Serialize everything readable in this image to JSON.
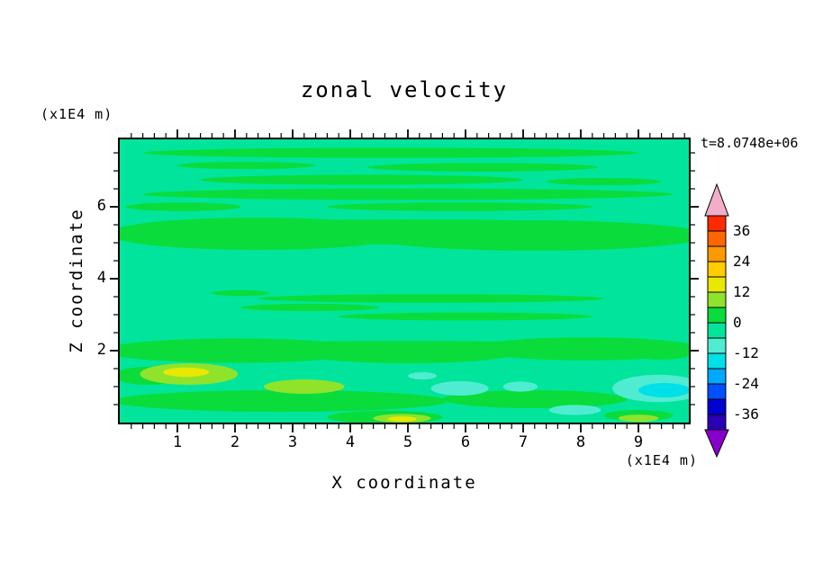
{
  "chart_data": {
    "type": "filled_contour",
    "title": "zonal velocity",
    "time_label": "t=8.0748e+06",
    "xlabel": "X coordinate",
    "ylabel": "Z coordinate",
    "x_unit": "(x1E4 m)",
    "y_unit": "(x1E4 m)",
    "contour_interval": 6,
    "x_axis": {
      "range": [
        0,
        9.875
      ],
      "major_ticks": [
        1,
        2,
        3,
        4,
        5,
        6,
        7,
        8,
        9
      ],
      "minor_step": 0.2
    },
    "z_axis": {
      "range": [
        0,
        7.875
      ],
      "major_ticks": [
        2,
        4,
        6
      ],
      "minor_step": 0.5
    },
    "colorbar": {
      "range": [
        -42,
        42
      ],
      "tick_labels": [
        36,
        24,
        12,
        0,
        -12,
        -24,
        -36
      ],
      "over_color": "#F2AEC8",
      "under_color": "#8800CC",
      "segments": [
        {
          "from": 36,
          "to": 42,
          "color": "#FF2A00"
        },
        {
          "from": 30,
          "to": 36,
          "color": "#FF6600"
        },
        {
          "from": 24,
          "to": 30,
          "color": "#FF9900"
        },
        {
          "from": 18,
          "to": 24,
          "color": "#FFCC00"
        },
        {
          "from": 12,
          "to": 18,
          "color": "#E8E800"
        },
        {
          "from": 6,
          "to": 12,
          "color": "#8FE32B"
        },
        {
          "from": 0,
          "to": 6,
          "color": "#0ADC3C"
        },
        {
          "from": -6,
          "to": 0,
          "color": "#00E59B"
        },
        {
          "from": -12,
          "to": -6,
          "color": "#50ECD2"
        },
        {
          "from": -18,
          "to": -12,
          "color": "#00E0E8"
        },
        {
          "from": -24,
          "to": -18,
          "color": "#00A8FF"
        },
        {
          "from": -30,
          "to": -24,
          "color": "#0050FF"
        },
        {
          "from": -36,
          "to": -30,
          "color": "#0000D0"
        },
        {
          "from": -42,
          "to": -36,
          "color": "#2B00B5"
        }
      ]
    },
    "field": {
      "background_band": "-6..0",
      "background_color": "#00E59B",
      "features": [
        {
          "x": 4.7,
          "z": 7.5,
          "rx": 4.3,
          "rz": 0.14,
          "band": 0
        },
        {
          "x": 2.2,
          "z": 7.15,
          "rx": 1.2,
          "rz": 0.1,
          "band": 0
        },
        {
          "x": 6.3,
          "z": 7.1,
          "rx": 2.0,
          "rz": 0.12,
          "band": 0
        },
        {
          "x": 4.2,
          "z": 6.75,
          "rx": 2.8,
          "rz": 0.14,
          "band": 0
        },
        {
          "x": 8.4,
          "z": 6.7,
          "rx": 1.0,
          "rz": 0.1,
          "band": 0
        },
        {
          "x": 5.0,
          "z": 6.35,
          "rx": 4.6,
          "rz": 0.16,
          "band": 0
        },
        {
          "x": 1.1,
          "z": 6.0,
          "rx": 1.0,
          "rz": 0.12,
          "band": 0
        },
        {
          "x": 5.9,
          "z": 6.0,
          "rx": 2.3,
          "rz": 0.12,
          "band": 0
        },
        {
          "x": 2.4,
          "z": 5.25,
          "rx": 2.6,
          "rz": 0.45,
          "band": 0
        },
        {
          "x": 7.2,
          "z": 5.2,
          "rx": 3.0,
          "rz": 0.42,
          "band": 0
        },
        {
          "x": 4.95,
          "z": 5.3,
          "rx": 5.0,
          "rz": 0.35,
          "band": 0
        },
        {
          "x": 5.4,
          "z": 3.45,
          "rx": 3.0,
          "rz": 0.12,
          "band": 0
        },
        {
          "x": 3.3,
          "z": 3.2,
          "rx": 1.2,
          "rz": 0.1,
          "band": 0
        },
        {
          "x": 6.0,
          "z": 2.95,
          "rx": 2.2,
          "rz": 0.11,
          "band": 0
        },
        {
          "x": 2.1,
          "z": 3.6,
          "rx": 0.5,
          "rz": 0.08,
          "band": 0
        },
        {
          "x": 2.0,
          "z": 2.0,
          "rx": 2.3,
          "rz": 0.34,
          "band": 0
        },
        {
          "x": 5.0,
          "z": 1.95,
          "rx": 1.9,
          "rz": 0.3,
          "band": 0
        },
        {
          "x": 8.1,
          "z": 2.05,
          "rx": 2.0,
          "rz": 0.32,
          "band": 0
        },
        {
          "x": 4.95,
          "z": 2.05,
          "rx": 5.0,
          "rz": 0.22,
          "band": 0
        },
        {
          "x": 2.8,
          "z": 0.6,
          "rx": 2.9,
          "rz": 0.3,
          "band": 0
        },
        {
          "x": 7.2,
          "z": 0.65,
          "rx": 1.6,
          "rz": 0.25,
          "band": 0
        },
        {
          "x": 0.5,
          "z": 1.3,
          "rx": 0.6,
          "rz": 0.25,
          "band": 0
        },
        {
          "x": 9.4,
          "z": 1.9,
          "rx": 0.5,
          "rz": 0.15,
          "band": 0
        },
        {
          "x": 4.6,
          "z": 0.15,
          "rx": 1.0,
          "rz": 0.18,
          "band": 0
        },
        {
          "x": 9.0,
          "z": 0.2,
          "rx": 0.6,
          "rz": 0.15,
          "band": 0
        },
        {
          "x": 1.2,
          "z": 1.35,
          "rx": 0.85,
          "rz": 0.3,
          "band": 6
        },
        {
          "x": 3.2,
          "z": 1.0,
          "rx": 0.7,
          "rz": 0.2,
          "band": 6
        },
        {
          "x": 4.9,
          "z": 0.12,
          "rx": 0.5,
          "rz": 0.12,
          "band": 6
        },
        {
          "x": 9.0,
          "z": 0.12,
          "rx": 0.35,
          "rz": 0.1,
          "band": 6
        },
        {
          "x": 1.15,
          "z": 1.4,
          "rx": 0.4,
          "rz": 0.13,
          "band": 12
        },
        {
          "x": 4.9,
          "z": 0.1,
          "rx": 0.25,
          "rz": 0.07,
          "band": 12
        },
        {
          "x": 5.9,
          "z": 0.95,
          "rx": 0.5,
          "rz": 0.2,
          "band": -12
        },
        {
          "x": 6.95,
          "z": 1.0,
          "rx": 0.3,
          "rz": 0.14,
          "band": -12
        },
        {
          "x": 9.35,
          "z": 0.95,
          "rx": 0.8,
          "rz": 0.38,
          "band": -12
        },
        {
          "x": 7.9,
          "z": 0.35,
          "rx": 0.45,
          "rz": 0.14,
          "band": -12
        },
        {
          "x": 5.25,
          "z": 1.3,
          "rx": 0.25,
          "rz": 0.1,
          "band": -12
        },
        {
          "x": 9.45,
          "z": 0.9,
          "rx": 0.45,
          "rz": 0.2,
          "band": -18
        }
      ]
    }
  }
}
